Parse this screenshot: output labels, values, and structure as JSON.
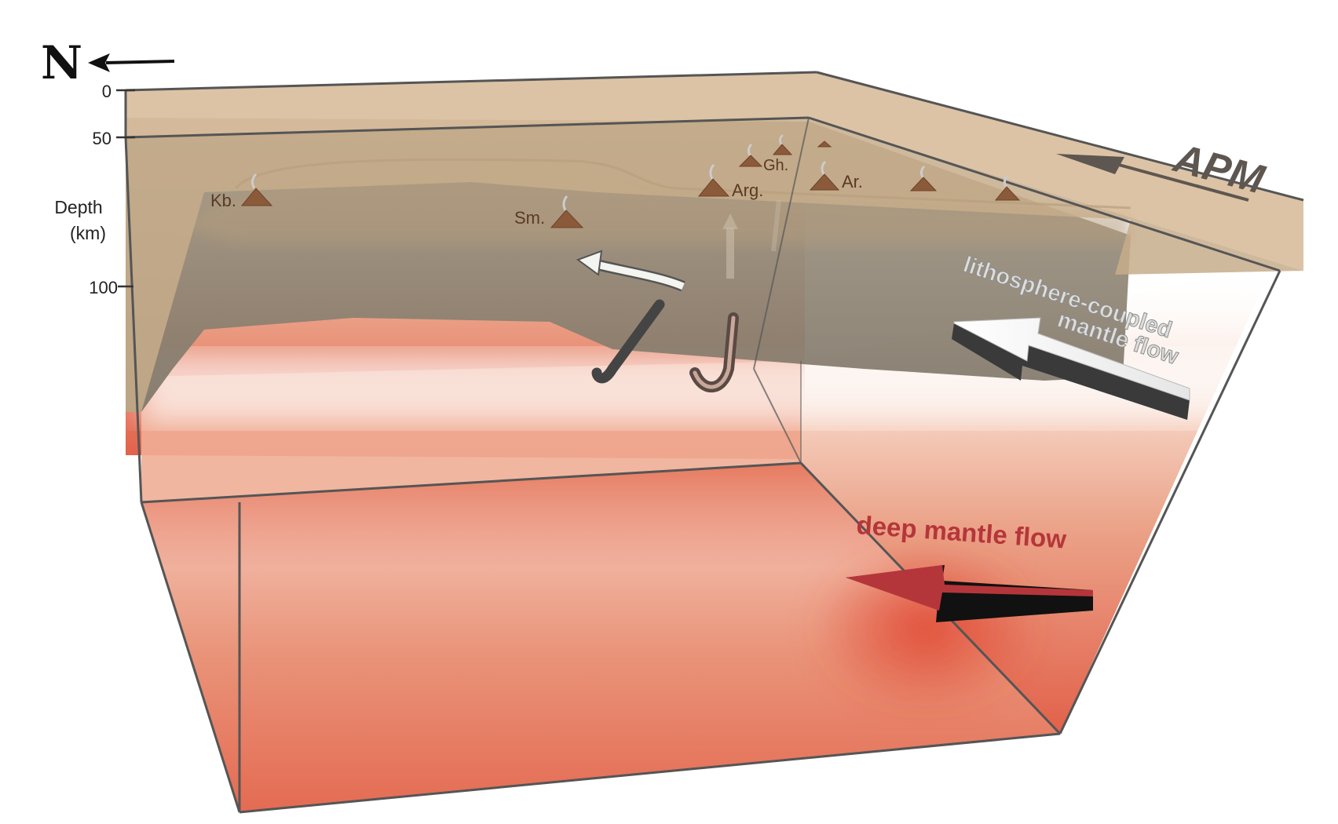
{
  "compass": {
    "letter": "N",
    "icon": "north-arrow-icon"
  },
  "depth_axis": {
    "title_line1": "Depth",
    "title_line2": "(km)",
    "ticks": [
      "0",
      "50",
      "100"
    ]
  },
  "volcanoes": {
    "kb": "Kb.",
    "sm": "Sm.",
    "arg": "Arg.",
    "gh": "Gh.",
    "ar": "Ar."
  },
  "apm_label": "APM",
  "lithosphere_flow": {
    "line1": "lithosphere-coupled",
    "line2": "mantle flow"
  },
  "deep_flow_label": "deep mantle flow",
  "colors": {
    "crust": "#c9ab88",
    "lithosphere": "#8f8577",
    "mantle_top": "#f2c2aa",
    "mantle_bottom": "#e2614a",
    "deep_arrow": "#b5363a",
    "volcano": "#8a5a3a",
    "box_edge": "#555555"
  }
}
